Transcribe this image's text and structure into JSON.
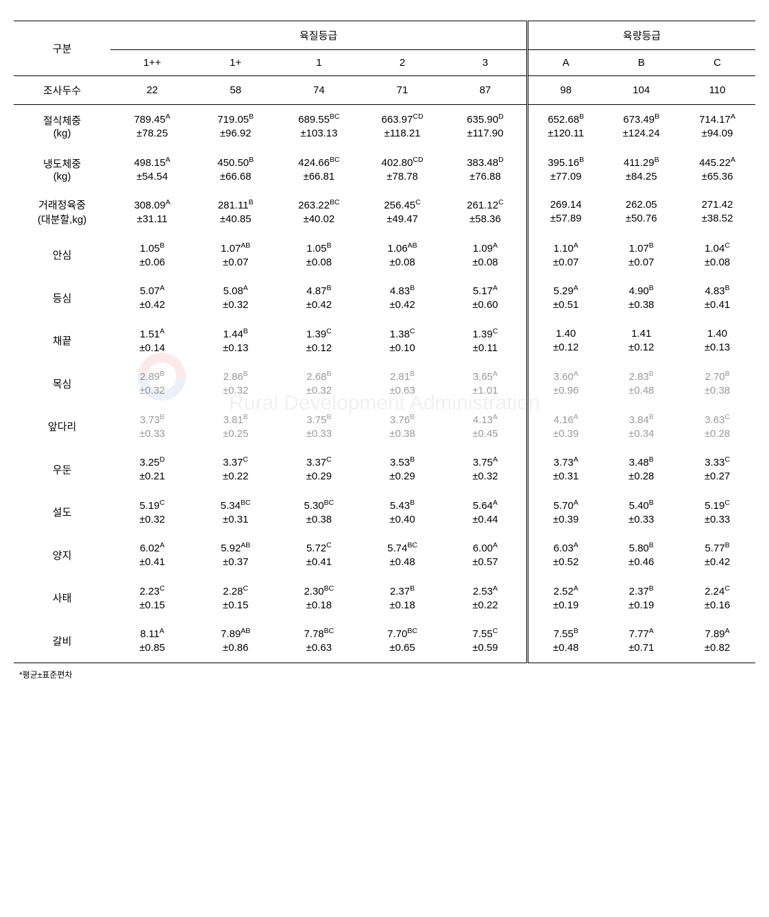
{
  "headers": {
    "rowLabel": "구분",
    "qualityGroup": "육질등급",
    "yieldGroup": "육량등급",
    "qualityCols": [
      "1++",
      "1+",
      "1",
      "2",
      "3"
    ],
    "yieldCols": [
      "A",
      "B",
      "C"
    ]
  },
  "countRow": {
    "label": "조사두수",
    "q": [
      "22",
      "58",
      "74",
      "71",
      "87"
    ],
    "y": [
      "98",
      "104",
      "110"
    ]
  },
  "dataRows": [
    {
      "label": "절식체중\n(kg)",
      "q": [
        {
          "m": "789.45",
          "s": "A",
          "sd": "78.25"
        },
        {
          "m": "719.05",
          "s": "B",
          "sd": "96.92"
        },
        {
          "m": "689.55",
          "s": "BC",
          "sd": "103.13"
        },
        {
          "m": "663.97",
          "s": "CD",
          "sd": "118.21"
        },
        {
          "m": "635.90",
          "s": "D",
          "sd": "117.90"
        }
      ],
      "y": [
        {
          "m": "652.68",
          "s": "B",
          "sd": "120.11"
        },
        {
          "m": "673.49",
          "s": "B",
          "sd": "124.24"
        },
        {
          "m": "714.17",
          "s": "A",
          "sd": "94.09"
        }
      ]
    },
    {
      "label": "냉도체중\n(kg)",
      "q": [
        {
          "m": "498.15",
          "s": "A",
          "sd": "54.54"
        },
        {
          "m": "450.50",
          "s": "B",
          "sd": "66.68"
        },
        {
          "m": "424.66",
          "s": "BC",
          "sd": "66.81"
        },
        {
          "m": "402.80",
          "s": "CD",
          "sd": "78.78"
        },
        {
          "m": "383.48",
          "s": "D",
          "sd": "76.88"
        }
      ],
      "y": [
        {
          "m": "395.16",
          "s": "B",
          "sd": "77.09"
        },
        {
          "m": "411.29",
          "s": "B",
          "sd": "84.25"
        },
        {
          "m": "445.22",
          "s": "A",
          "sd": "65.36"
        }
      ]
    },
    {
      "label": "거래정육중\n(대분할,kg)",
      "q": [
        {
          "m": "308.09",
          "s": "A",
          "sd": "31.11"
        },
        {
          "m": "281.11",
          "s": "B",
          "sd": "40.85"
        },
        {
          "m": "263.22",
          "s": "BC",
          "sd": "40.02"
        },
        {
          "m": "256.45",
          "s": "C",
          "sd": "49.47"
        },
        {
          "m": "261.12",
          "s": "C",
          "sd": "58.36"
        }
      ],
      "y": [
        {
          "m": "269.14",
          "s": "",
          "sd": "57.89"
        },
        {
          "m": "262.05",
          "s": "",
          "sd": "50.76"
        },
        {
          "m": "271.42",
          "s": "",
          "sd": "38.52"
        }
      ]
    },
    {
      "label": "안심",
      "q": [
        {
          "m": "1.05",
          "s": "B",
          "sd": "0.06"
        },
        {
          "m": "1.07",
          "s": "AB",
          "sd": "0.07"
        },
        {
          "m": "1.05",
          "s": "B",
          "sd": "0.08"
        },
        {
          "m": "1.06",
          "s": "AB",
          "sd": "0.08"
        },
        {
          "m": "1.09",
          "s": "A",
          "sd": "0.08"
        }
      ],
      "y": [
        {
          "m": "1.10",
          "s": "A",
          "sd": "0.07"
        },
        {
          "m": "1.07",
          "s": "B",
          "sd": "0.07"
        },
        {
          "m": "1.04",
          "s": "C",
          "sd": "0.08"
        }
      ]
    },
    {
      "label": "등심",
      "q": [
        {
          "m": "5.07",
          "s": "A",
          "sd": "0.42"
        },
        {
          "m": "5.08",
          "s": "A",
          "sd": "0.32"
        },
        {
          "m": "4.87",
          "s": "B",
          "sd": "0.42"
        },
        {
          "m": "4.83",
          "s": "B",
          "sd": "0.42"
        },
        {
          "m": "5.17",
          "s": "A",
          "sd": "0.60"
        }
      ],
      "y": [
        {
          "m": "5.29",
          "s": "A",
          "sd": "0.51"
        },
        {
          "m": "4.90",
          "s": "B",
          "sd": "0.38"
        },
        {
          "m": "4.83",
          "s": "B",
          "sd": "0.41"
        }
      ]
    },
    {
      "label": "채끝",
      "q": [
        {
          "m": "1.51",
          "s": "A",
          "sd": "0.14"
        },
        {
          "m": "1.44",
          "s": "B",
          "sd": "0.13"
        },
        {
          "m": "1.39",
          "s": "C",
          "sd": "0.12"
        },
        {
          "m": "1.38",
          "s": "C",
          "sd": "0.10"
        },
        {
          "m": "1.39",
          "s": "C",
          "sd": "0.11"
        }
      ],
      "y": [
        {
          "m": "1.40",
          "s": "",
          "sd": "0.12"
        },
        {
          "m": "1.41",
          "s": "",
          "sd": "0.12"
        },
        {
          "m": "1.40",
          "s": "",
          "sd": "0.13"
        }
      ]
    },
    {
      "label": "목심",
      "muted": true,
      "q": [
        {
          "m": "2.89",
          "s": "B",
          "sd": "0.32"
        },
        {
          "m": "2.86",
          "s": "B",
          "sd": "0.32"
        },
        {
          "m": "2.68",
          "s": "B",
          "sd": "0.32"
        },
        {
          "m": "2.81",
          "s": "B",
          "sd": "0.63"
        },
        {
          "m": "3.65",
          "s": "A",
          "sd": "1.01"
        }
      ],
      "y": [
        {
          "m": "3.60",
          "s": "A",
          "sd": "0.96"
        },
        {
          "m": "2.83",
          "s": "B",
          "sd": "0.48"
        },
        {
          "m": "2.70",
          "s": "B",
          "sd": "0.38"
        }
      ]
    },
    {
      "label": "앞다리",
      "muted": true,
      "q": [
        {
          "m": "3.73",
          "s": "B",
          "sd": "0.33"
        },
        {
          "m": "3.81",
          "s": "B",
          "sd": "0.25"
        },
        {
          "m": "3.75",
          "s": "B",
          "sd": "0.33"
        },
        {
          "m": "3.76",
          "s": "B",
          "sd": "0.38"
        },
        {
          "m": "4.13",
          "s": "A",
          "sd": "0.45"
        }
      ],
      "y": [
        {
          "m": "4.16",
          "s": "A",
          "sd": "0.39"
        },
        {
          "m": "3.84",
          "s": "B",
          "sd": "0.34"
        },
        {
          "m": "3.63",
          "s": "C",
          "sd": "0.28"
        }
      ]
    },
    {
      "label": "우둔",
      "q": [
        {
          "m": "3.25",
          "s": "D",
          "sd": "0.21"
        },
        {
          "m": "3.37",
          "s": "C",
          "sd": "0.22"
        },
        {
          "m": "3.37",
          "s": "C",
          "sd": "0.29"
        },
        {
          "m": "3.53",
          "s": "B",
          "sd": "0.29"
        },
        {
          "m": "3.75",
          "s": "A",
          "sd": "0.32"
        }
      ],
      "y": [
        {
          "m": "3.73",
          "s": "A",
          "sd": "0.31"
        },
        {
          "m": "3.48",
          "s": "B",
          "sd": "0.28"
        },
        {
          "m": "3.33",
          "s": "C",
          "sd": "0.27"
        }
      ]
    },
    {
      "label": "설도",
      "q": [
        {
          "m": "5.19",
          "s": "C",
          "sd": "0.32"
        },
        {
          "m": "5.34",
          "s": "BC",
          "sd": "0.31"
        },
        {
          "m": "5.30",
          "s": "BC",
          "sd": "0.38"
        },
        {
          "m": "5.43",
          "s": "B",
          "sd": "0.40"
        },
        {
          "m": "5.64",
          "s": "A",
          "sd": "0.44"
        }
      ],
      "y": [
        {
          "m": "5.70",
          "s": "A",
          "sd": "0.39"
        },
        {
          "m": "5.40",
          "s": "B",
          "sd": "0.33"
        },
        {
          "m": "5.19",
          "s": "C",
          "sd": "0.33"
        }
      ]
    },
    {
      "label": "양지",
      "q": [
        {
          "m": "6.02",
          "s": "A",
          "sd": "0.41"
        },
        {
          "m": "5.92",
          "s": "AB",
          "sd": "0.37"
        },
        {
          "m": "5.72",
          "s": "C",
          "sd": "0.41"
        },
        {
          "m": "5.74",
          "s": "BC",
          "sd": "0.48"
        },
        {
          "m": "6.00",
          "s": "A",
          "sd": "0.57"
        }
      ],
      "y": [
        {
          "m": "6.03",
          "s": "A",
          "sd": "0.52"
        },
        {
          "m": "5.80",
          "s": "B",
          "sd": "0.46"
        },
        {
          "m": "5.77",
          "s": "B",
          "sd": "0.42"
        }
      ]
    },
    {
      "label": "사태",
      "q": [
        {
          "m": "2.23",
          "s": "C",
          "sd": "0.15"
        },
        {
          "m": "2.28",
          "s": "C",
          "sd": "0.15"
        },
        {
          "m": "2.30",
          "s": "BC",
          "sd": "0.18"
        },
        {
          "m": "2.37",
          "s": "B",
          "sd": "0.18"
        },
        {
          "m": "2.53",
          "s": "A",
          "sd": "0.22"
        }
      ],
      "y": [
        {
          "m": "2.52",
          "s": "A",
          "sd": "0.19"
        },
        {
          "m": "2.37",
          "s": "B",
          "sd": "0.19"
        },
        {
          "m": "2.24",
          "s": "C",
          "sd": "0.16"
        }
      ]
    },
    {
      "label": "갈비",
      "q": [
        {
          "m": "8.11",
          "s": "A",
          "sd": "0.85"
        },
        {
          "m": "7.89",
          "s": "AB",
          "sd": "0.86"
        },
        {
          "m": "7.78",
          "s": "BC",
          "sd": "0.63"
        },
        {
          "m": "7.70",
          "s": "BC",
          "sd": "0.65"
        },
        {
          "m": "7.55",
          "s": "C",
          "sd": "0.59"
        }
      ],
      "y": [
        {
          "m": "7.55",
          "s": "B",
          "sd": "0.48"
        },
        {
          "m": "7.77",
          "s": "A",
          "sd": "0.71"
        },
        {
          "m": "7.89",
          "s": "A",
          "sd": "0.82"
        }
      ]
    }
  ],
  "footnote": "*평균±표준편차",
  "watermark": "Rural Development Administration",
  "colors": {
    "text": "#000000",
    "muted": "#999999",
    "bg": "#ffffff"
  }
}
